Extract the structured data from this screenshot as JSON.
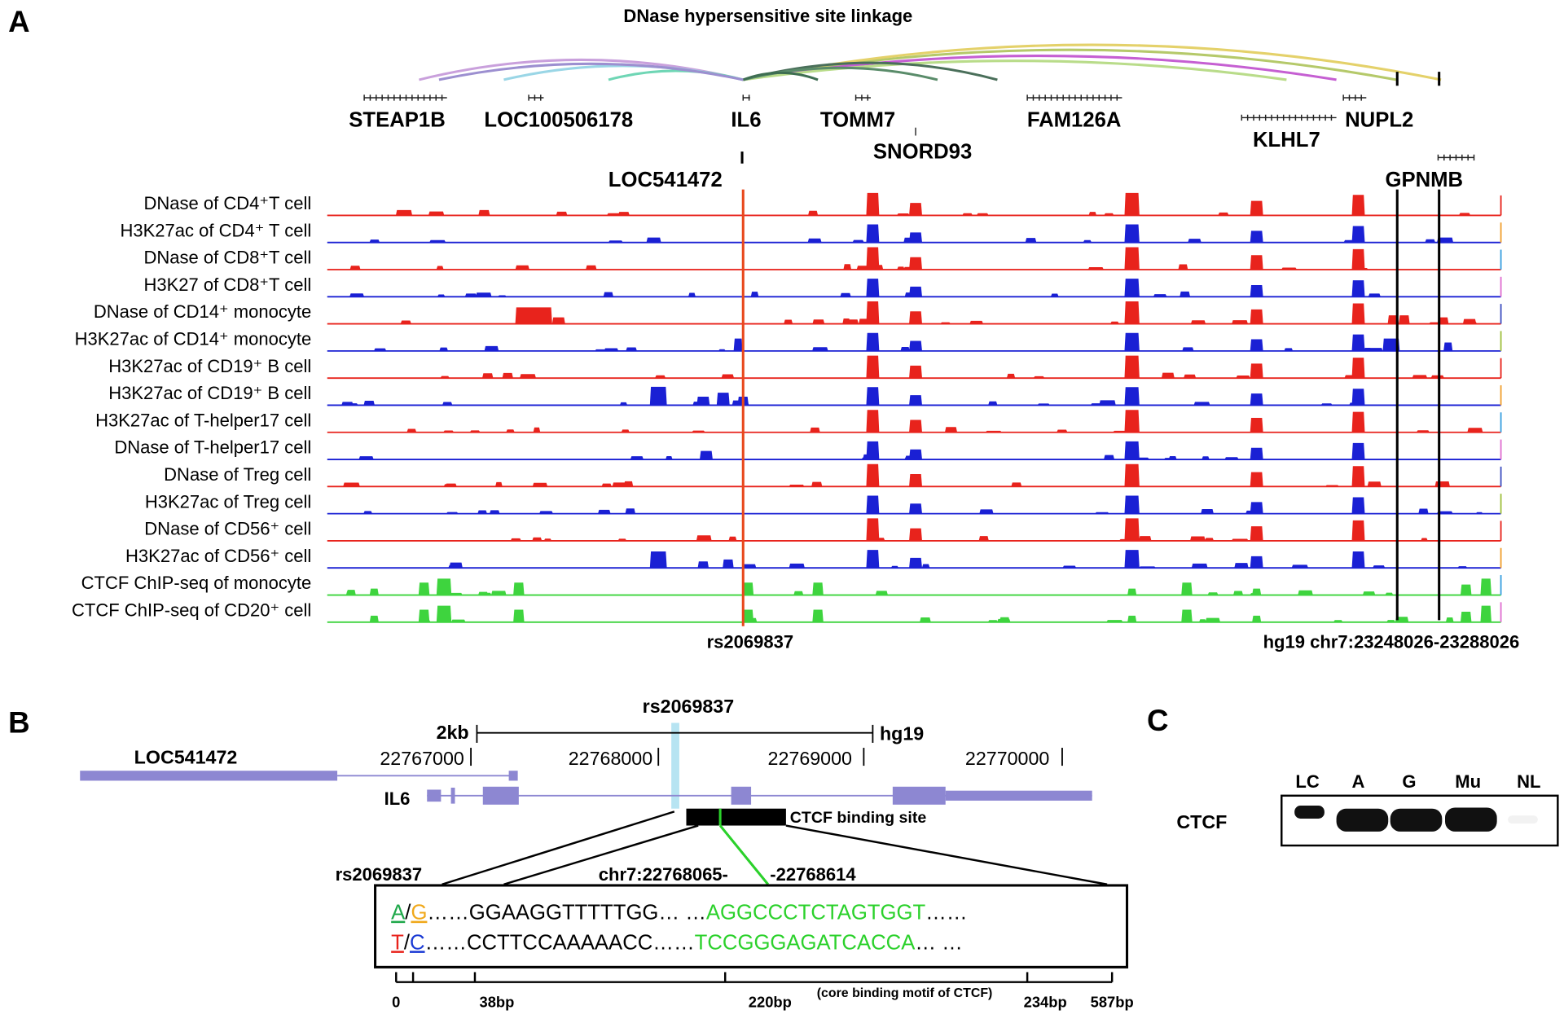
{
  "panel_a": {
    "label": "A",
    "title": "DNase hypersensitive site linkage",
    "genes": [
      "STEAP1B",
      "LOC100506178",
      "IL6",
      "TOMM7",
      "SNORD93",
      "FAM126A",
      "KLHL7",
      "NUPL2",
      "LOC541472",
      "GPNMB"
    ],
    "tracks": [
      "DNase of CD4⁺T cell",
      "H3K27ac of CD4⁺ T cell",
      "DNase of CD8⁺T cell",
      "H3K27 of CD8⁺T cell",
      "DNase of CD14⁺ monocyte",
      "H3K27ac of CD14⁺ monocyte",
      "H3K27ac of CD19⁺ B cell",
      "H3K27ac of CD19⁺ B cell",
      "H3K27ac of T-helper17 cell",
      "DNase of T-helper17 cell",
      "DNase of Treg cell",
      "H3K27ac of Treg cell",
      "DNase of CD56⁺ cell",
      "H3K27ac of CD56⁺ cell",
      "CTCF ChIP-seq of monocyte",
      "CTCF ChIP-seq of CD20⁺  cell"
    ],
    "snp": "rs2069837",
    "region": "hg19 chr7:23248026-23288026"
  },
  "panel_b": {
    "label": "B",
    "snp": "rs2069837",
    "scale": "2kb",
    "assembly": "hg19",
    "positions": [
      "22767000",
      "22768000",
      "22769000",
      "22770000"
    ],
    "gene_loc": "LOC541472",
    "gene_il6": "IL6",
    "binding_site": "CTCF binding site",
    "snp_zoom": "rs2069837",
    "range_start": "chr7:22768065-",
    "range_end": "-22768614",
    "sequence": [
      {
        "parts": [
          "A",
          "/",
          "G",
          "……GGAAGGTTTTTGG… …",
          "AGGCCCTCTAGTGGT",
          "……"
        ]
      },
      {
        "parts": [
          "T",
          "/",
          "C",
          "……CCTTCCAAAAACC……",
          "TCCGGGAGATCACCA",
          "… …"
        ]
      }
    ],
    "ruler": [
      "0",
      "38bp",
      "220bp",
      "(core binding motif of CTCF)",
      "234bp",
      "587bp"
    ]
  },
  "panel_c": {
    "label": "C",
    "lanes": [
      "LC",
      "A",
      "G",
      "Mu",
      "NL"
    ],
    "protein": "CTCF"
  }
}
